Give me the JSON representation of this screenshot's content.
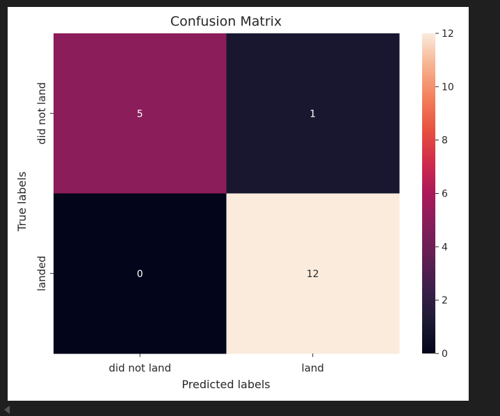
{
  "chart_data": {
    "type": "heatmap",
    "title": "Confusion Matrix",
    "xlabel": "Predicted labels",
    "ylabel": "True labels",
    "x_categories": [
      "did not land",
      "land"
    ],
    "y_categories": [
      "did not land",
      "landed"
    ],
    "values": [
      [
        5,
        1
      ],
      [
        0,
        12
      ]
    ],
    "annotations": [
      [
        "5",
        "1"
      ],
      [
        "0",
        "12"
      ]
    ],
    "colorbar": {
      "vmin": 0,
      "vmax": 12,
      "ticks": [
        0,
        2,
        4,
        6,
        8,
        10,
        12
      ],
      "colormap": "rocket"
    },
    "colors": {
      "annotation_light": "#ffffff",
      "annotation_dark": "#262626",
      "axis_text": "#262626"
    }
  }
}
